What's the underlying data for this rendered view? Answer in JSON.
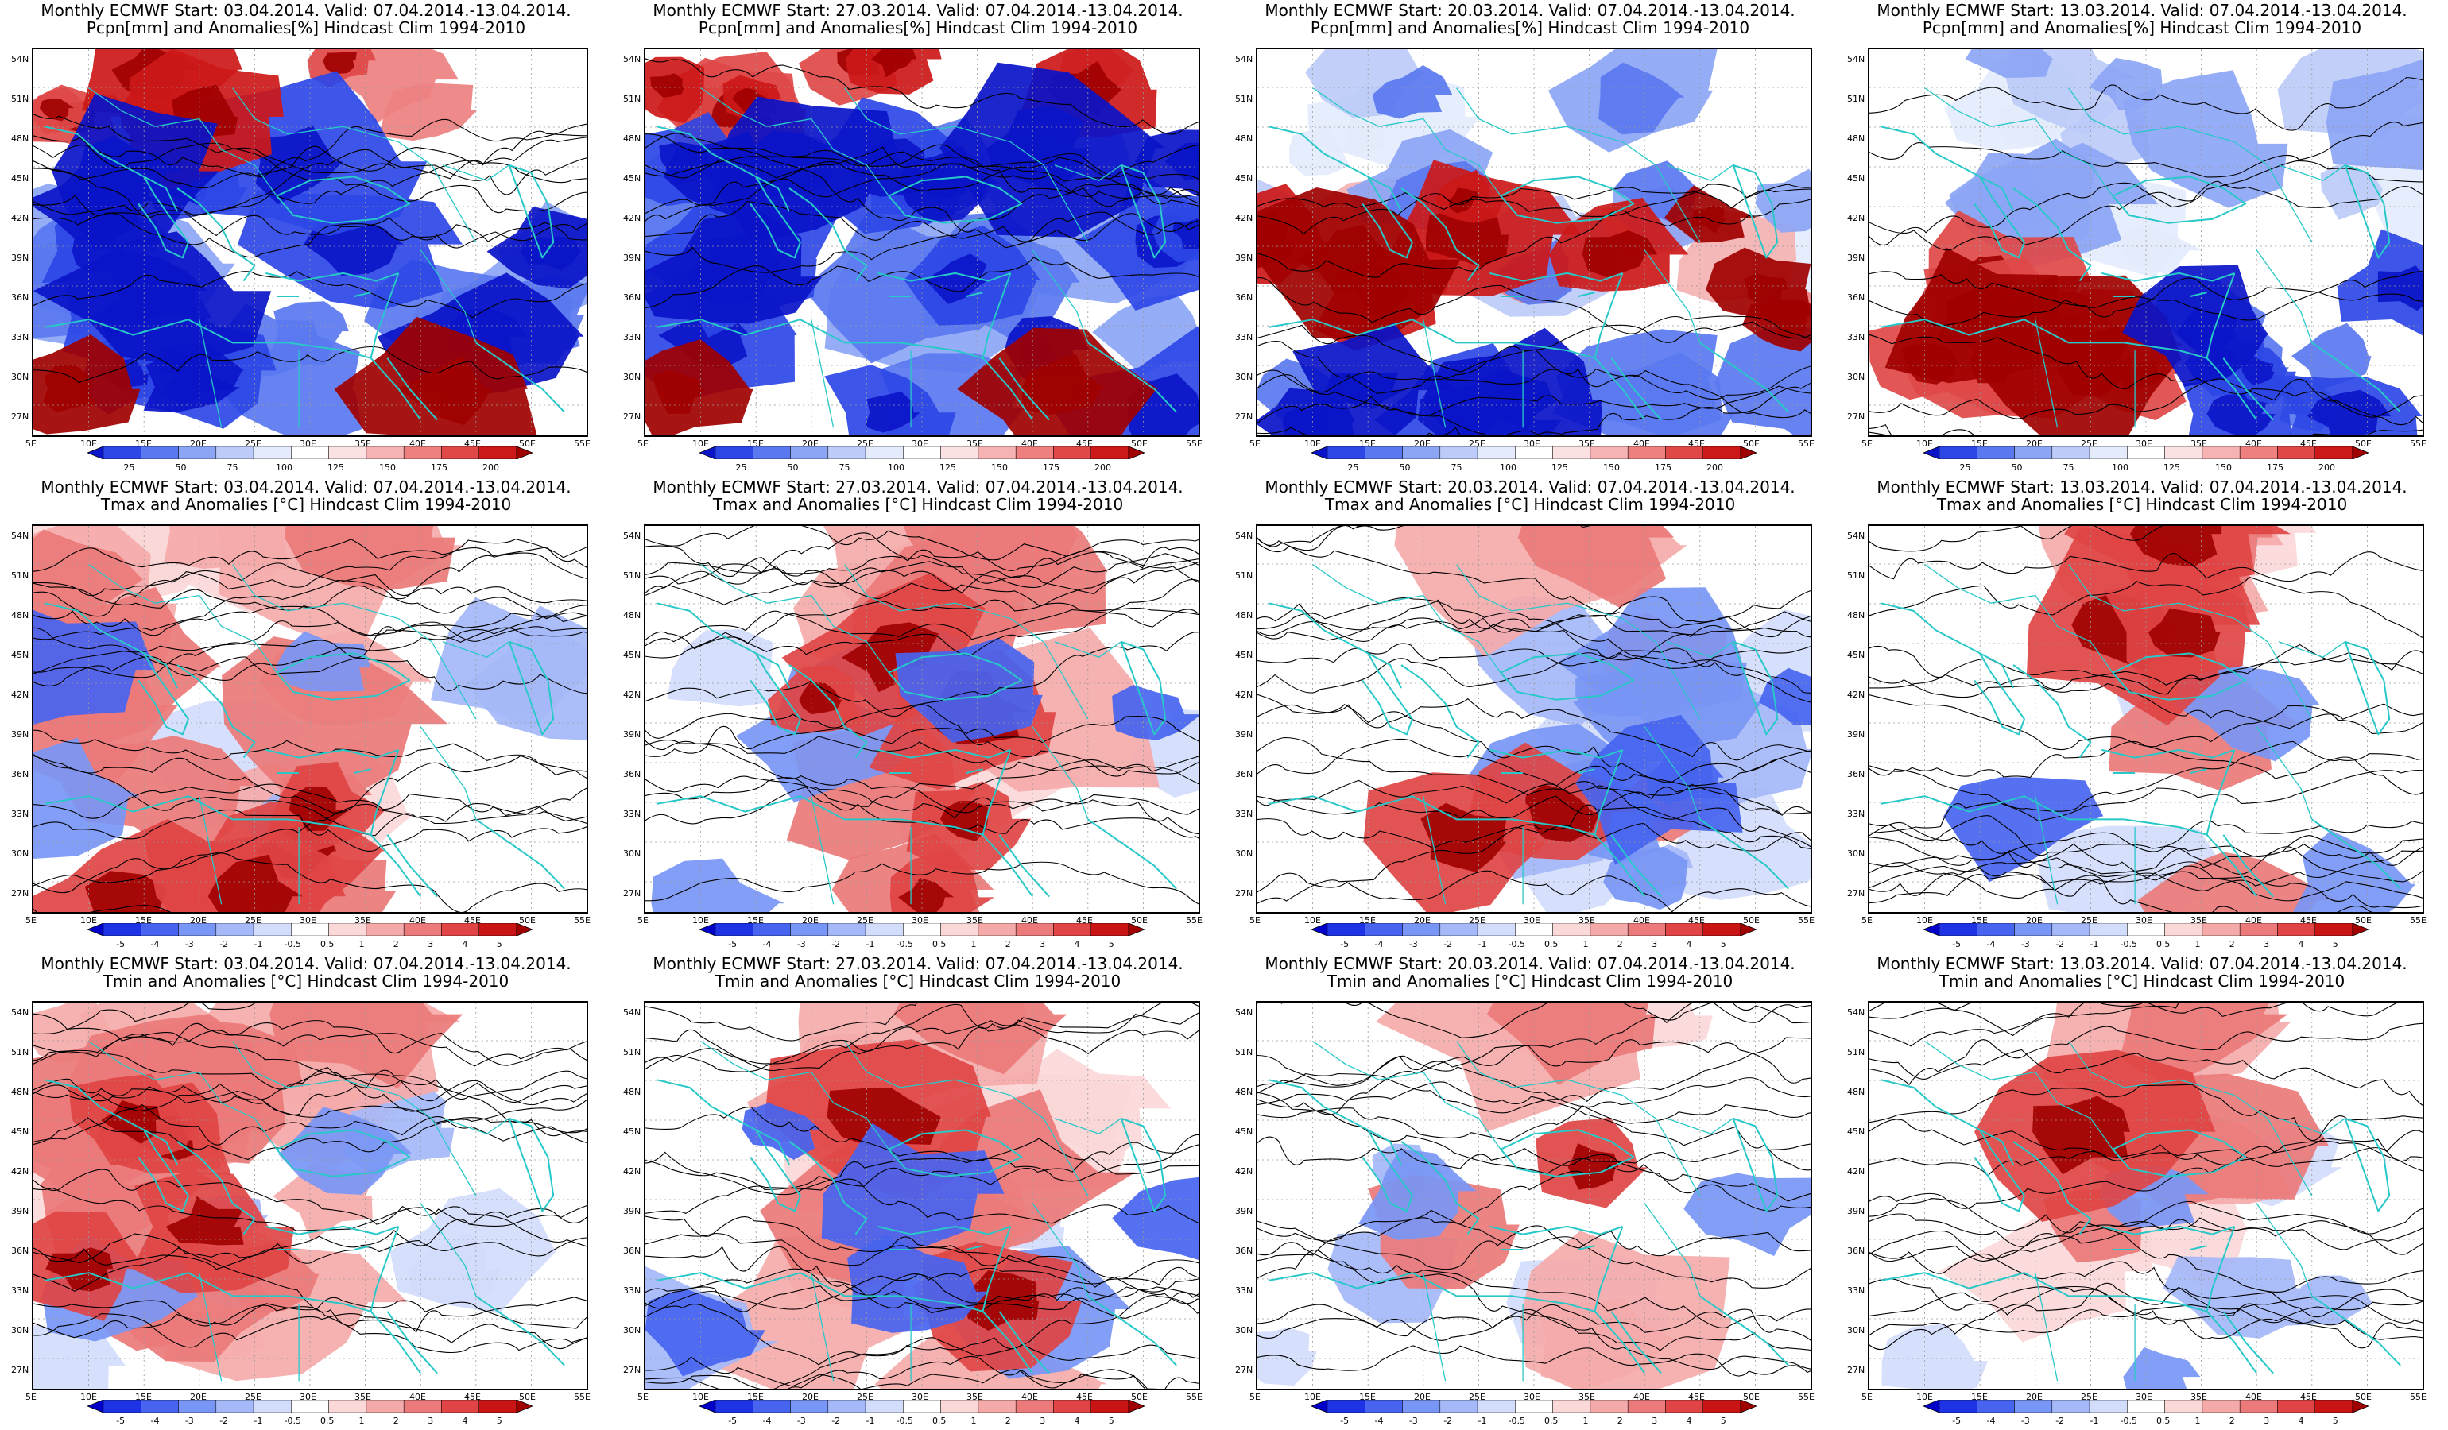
{
  "panels": [
    {
      "title1": "Monthly ECMWF Start: 03.04.2014. Valid: 07.04.2014.-13.04.2014.",
      "title2": "Pcpn[mm] and Anomalies[%] Hindcast Clim 1994-2010",
      "type": "pcpn",
      "mood": "dry"
    },
    {
      "title1": "Monthly ECMWF Start: 27.03.2014. Valid: 07.04.2014.-13.04.2014.",
      "title2": "Pcpn[mm] and Anomalies[%] Hindcast Clim 1994-2010",
      "type": "pcpn",
      "mood": "dry"
    },
    {
      "title1": "Monthly ECMWF Start: 20.03.2014. Valid: 07.04.2014.-13.04.2014.",
      "title2": "Pcpn[mm] and Anomalies[%] Hindcast Clim 1994-2010",
      "type": "pcpn",
      "mood": "mixed"
    },
    {
      "title1": "Monthly ECMWF Start: 13.03.2014. Valid: 07.04.2014.-13.04.2014.",
      "title2": "Pcpn[mm] and Anomalies[%] Hindcast Clim 1994-2010",
      "type": "pcpn",
      "mood": "wet-south"
    },
    {
      "title1": "Monthly ECMWF Start: 03.04.2014. Valid: 07.04.2014.-13.04.2014.",
      "title2": "Tmax and Anomalies [°C] Hindcast Clim 1994-2010",
      "type": "temp",
      "mood": "warm"
    },
    {
      "title1": "Monthly ECMWF Start: 27.03.2014. Valid: 07.04.2014.-13.04.2014.",
      "title2": "Tmax and Anomalies [°C] Hindcast Clim 1994-2010",
      "type": "temp",
      "mood": "warm-east"
    },
    {
      "title1": "Monthly ECMWF Start: 20.03.2014. Valid: 07.04.2014.-13.04.2014.",
      "title2": "Tmax and Anomalies [°C] Hindcast Clim 1994-2010",
      "type": "temp",
      "mood": "cool-east"
    },
    {
      "title1": "Monthly ECMWF Start: 13.03.2014. Valid: 07.04.2014.-13.04.2014.",
      "title2": "Tmax and Anomalies [°C] Hindcast Clim 1994-2010",
      "type": "temp",
      "mood": "neutral"
    },
    {
      "title1": "Monthly ECMWF Start: 03.04.2014. Valid: 07.04.2014.-13.04.2014.",
      "title2": "Tmin and Anomalies [°C] Hindcast Clim 1994-2010",
      "type": "temp",
      "mood": "warm"
    },
    {
      "title1": "Monthly ECMWF Start: 27.03.2014. Valid: 07.04.2014.-13.04.2014.",
      "title2": "Tmin and Anomalies [°C] Hindcast Clim 1994-2010",
      "type": "temp",
      "mood": "warm-east"
    },
    {
      "title1": "Monthly ECMWF Start: 20.03.2014. Valid: 07.04.2014.-13.04.2014.",
      "title2": "Tmin and Anomalies [°C] Hindcast Clim 1994-2010",
      "type": "temp",
      "mood": "neutral"
    },
    {
      "title1": "Monthly ECMWF Start: 13.03.2014. Valid: 07.04.2014.-13.04.2014.",
      "title2": "Tmin and Anomalies [°C] Hindcast Clim 1994-2010",
      "type": "temp",
      "mood": "neutral"
    }
  ],
  "axes": {
    "lat_labels": [
      "54N",
      "51N",
      "48N",
      "45N",
      "42N",
      "39N",
      "36N",
      "33N",
      "30N",
      "27N"
    ],
    "lon_labels": [
      "5E",
      "10E",
      "15E",
      "20E",
      "25E",
      "30E",
      "35E",
      "40E",
      "45E",
      "50E",
      "55E"
    ]
  },
  "colorbars": {
    "pcpn": {
      "labels": [
        "25",
        "50",
        "75",
        "100",
        "125",
        "150",
        "175",
        "200"
      ],
      "colors": [
        "#0a14c8",
        "#2d46e6",
        "#5a78f0",
        "#8ca5f5",
        "#bccbf8",
        "#e4ebfc",
        "#ffffff",
        "#fbe1e1",
        "#f5b3b3",
        "#ee8080",
        "#e04848",
        "#cc1818",
        "#a00000"
      ]
    },
    "temp": {
      "labels": [
        "-5",
        "-4",
        "-3",
        "-2",
        "-1",
        "-0.5",
        "0.5",
        "1",
        "2",
        "3",
        "4",
        "5"
      ],
      "colors": [
        "#0000c8",
        "#1e32e6",
        "#4664f0",
        "#7896f5",
        "#a5b9f8",
        "#d2dcfb",
        "#ffffff",
        "#fbd8d8",
        "#f5aaaa",
        "#ec7a7a",
        "#e04444",
        "#c81414",
        "#a00000"
      ]
    }
  },
  "colors": {
    "coast": "#28c8c8",
    "contour": "#000000",
    "frame": "#000000"
  }
}
